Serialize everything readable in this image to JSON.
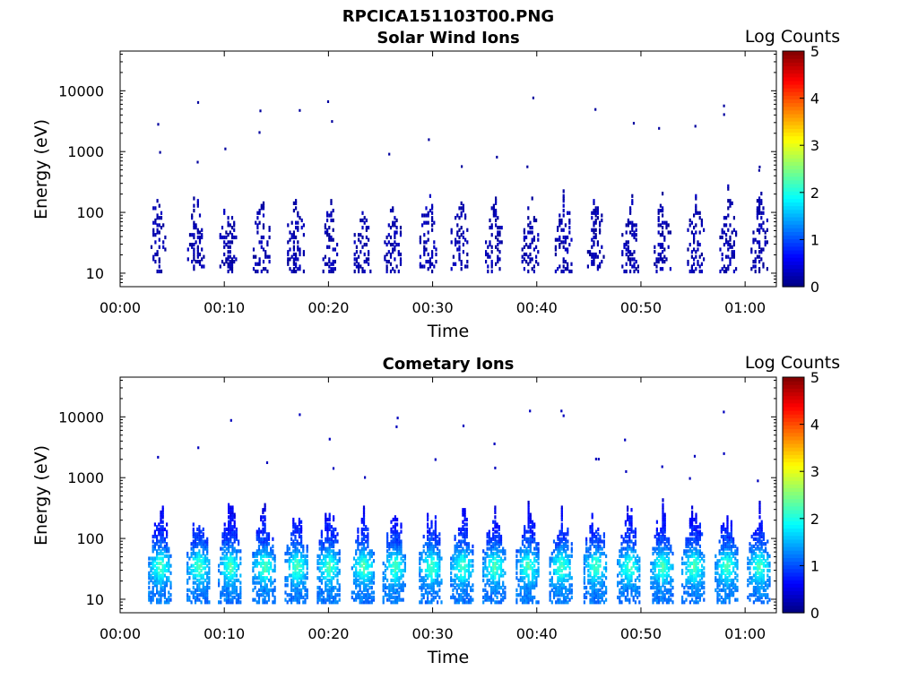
{
  "figure": {
    "title": "RPCICA151103T00.PNG"
  },
  "chart_data": [
    {
      "type": "heatmap",
      "title": "Solar Wind Ions",
      "xlabel": "Time",
      "ylabel": "Energy (eV)",
      "x_tick_labels": [
        "00:00",
        "00:10",
        "00:20",
        "00:30",
        "00:40",
        "00:50",
        "01:00"
      ],
      "x_tick_minutes": [
        0,
        10,
        20,
        30,
        40,
        50,
        60
      ],
      "xlim_minutes": [
        0,
        63
      ],
      "y_scale": "log",
      "ylim": [
        6,
        45000
      ],
      "y_tick_labels": [
        "10",
        "100",
        "1000",
        "10000"
      ],
      "y_tick_values": [
        10,
        100,
        1000,
        10000
      ],
      "colorbar": {
        "label": "Log Counts",
        "range": [
          0,
          5
        ],
        "tick_labels": [
          "0",
          "1",
          "2",
          "3",
          "4",
          "5"
        ],
        "colormap": "jet"
      },
      "bursts_minutes": [
        3.5,
        7.2,
        10.3,
        13.5,
        16.8,
        20.0,
        23.2,
        26.1,
        29.5,
        32.5,
        35.8,
        39.3,
        42.5,
        45.6,
        48.9,
        52.0,
        55.2,
        58.3,
        61.3
      ],
      "typical_energy_range_eV": [
        12,
        300
      ],
      "typical_log_counts": 0.1
    },
    {
      "type": "heatmap",
      "title": "Cometary Ions",
      "xlabel": "Time",
      "ylabel": "Energy (eV)",
      "x_tick_labels": [
        "00:00",
        "00:10",
        "00:20",
        "00:30",
        "00:40",
        "00:50",
        "01:00"
      ],
      "x_tick_minutes": [
        0,
        10,
        20,
        30,
        40,
        50,
        60
      ],
      "xlim_minutes": [
        0,
        63
      ],
      "y_scale": "log",
      "ylim": [
        6,
        45000
      ],
      "y_tick_labels": [
        "10",
        "100",
        "1000",
        "10000"
      ],
      "y_tick_values": [
        10,
        100,
        1000,
        10000
      ],
      "colorbar": {
        "label": "Log Counts",
        "range": [
          0,
          5
        ],
        "tick_labels": [
          "0",
          "1",
          "2",
          "3",
          "4",
          "5"
        ],
        "colormap": "jet"
      },
      "bursts_minutes": [
        3.8,
        7.5,
        10.5,
        13.8,
        16.9,
        20.0,
        23.3,
        26.3,
        29.8,
        32.8,
        35.9,
        39.1,
        42.3,
        45.6,
        48.8,
        52.0,
        55.0,
        58.2,
        61.3
      ],
      "typical_energy_range_eV": [
        10,
        500
      ],
      "typical_log_counts": 1.2
    }
  ]
}
